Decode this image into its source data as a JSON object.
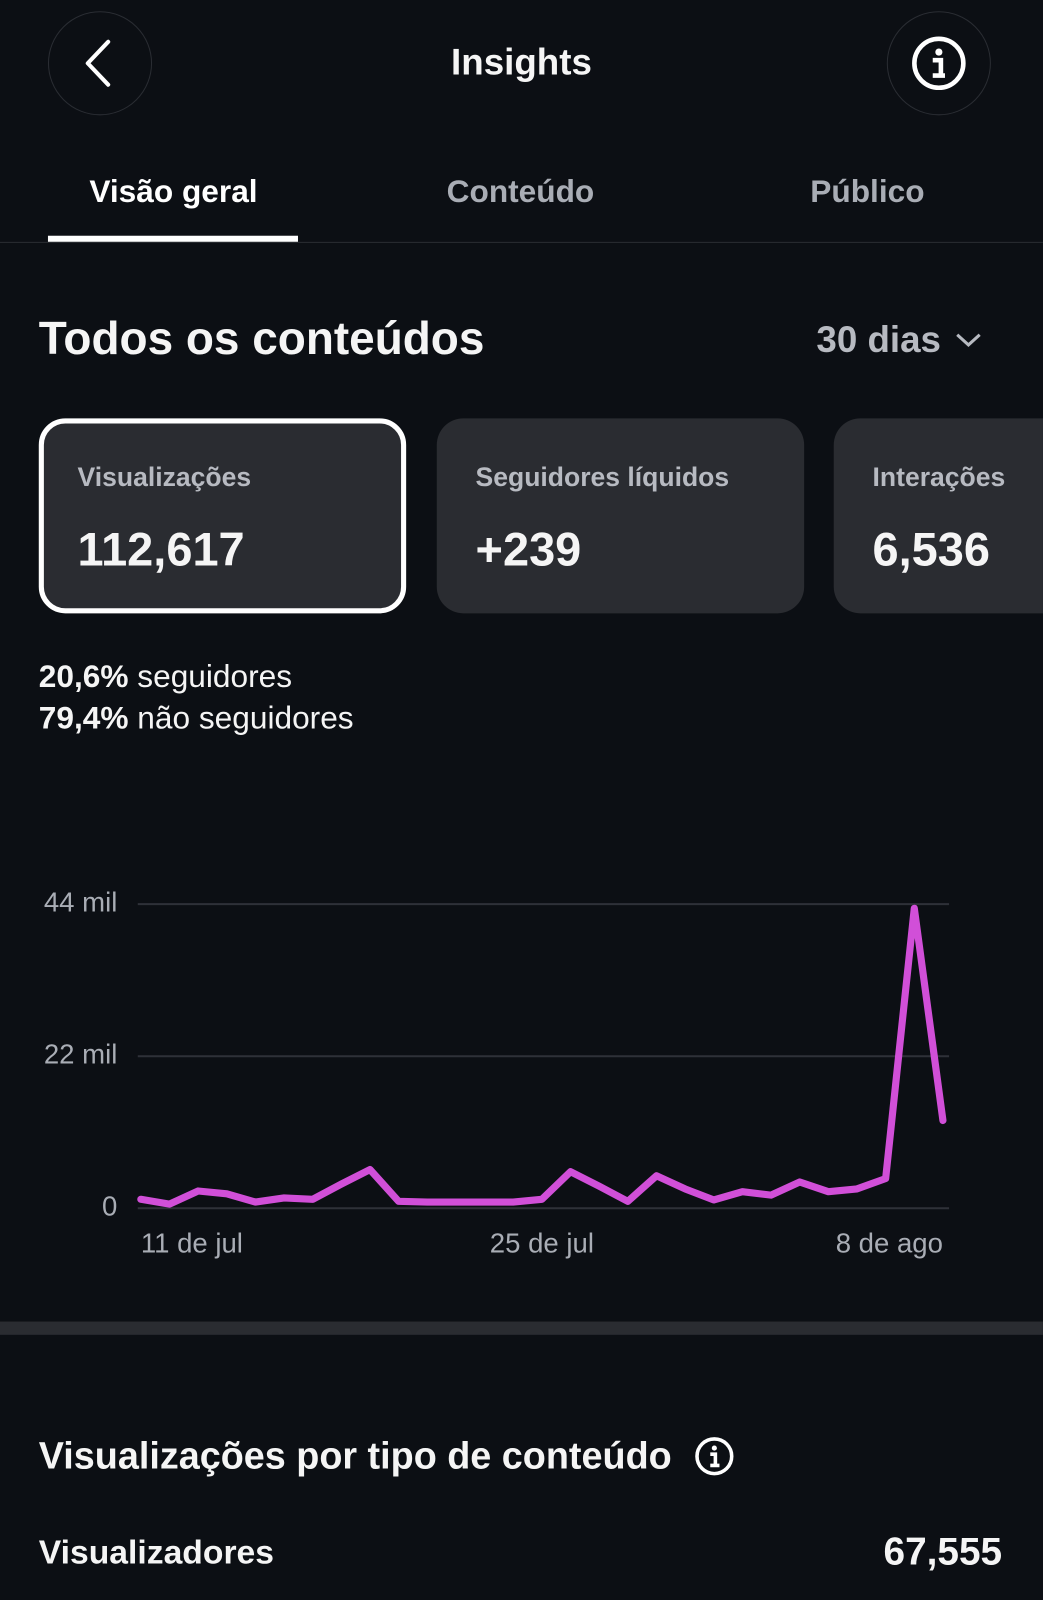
{
  "header": {
    "title": "Insights"
  },
  "tabs": [
    "Visão geral",
    "Conteúdo",
    "Público"
  ],
  "section": {
    "title": "Todos os conteúdos",
    "period": "30 dias"
  },
  "cards": [
    {
      "label": "Visualizações",
      "value": "112,617"
    },
    {
      "label": "Seguidores líquidos",
      "value": "+239"
    },
    {
      "label": "Interações",
      "value": "6,536"
    }
  ],
  "breakdown": [
    {
      "percent": "20,6%",
      "label": "seguidores"
    },
    {
      "percent": "79,4%",
      "label": "não seguidores"
    }
  ],
  "chart_data": {
    "type": "line",
    "categories": [
      "11 de jul",
      null,
      null,
      null,
      null,
      null,
      null,
      null,
      null,
      null,
      null,
      null,
      null,
      null,
      "25 de jul",
      null,
      null,
      null,
      null,
      null,
      null,
      null,
      null,
      null,
      null,
      null,
      null,
      null,
      "8 de ago"
    ],
    "series": [
      {
        "name": "Visualizações",
        "color": "#d14fd8",
        "values": [
          1300,
          600,
          2500,
          2100,
          900,
          1500,
          1300,
          3500,
          5600,
          1000,
          900,
          900,
          900,
          900,
          1300,
          5300,
          3200,
          1000,
          4700,
          2800,
          1200,
          2400,
          1900,
          3800,
          2400,
          2800,
          4300,
          43400,
          12700
        ]
      }
    ],
    "ylim": [
      0,
      44000
    ],
    "yticks": [
      0,
      {
        "value": 22000,
        "label": "22 mil"
      },
      {
        "value": 44000,
        "label": "44 mil"
      }
    ],
    "grid": true
  },
  "content_type": {
    "title": "Visualizações por tipo de conteúdo",
    "row_label": "Visualizadores",
    "row_value": "67,555"
  }
}
